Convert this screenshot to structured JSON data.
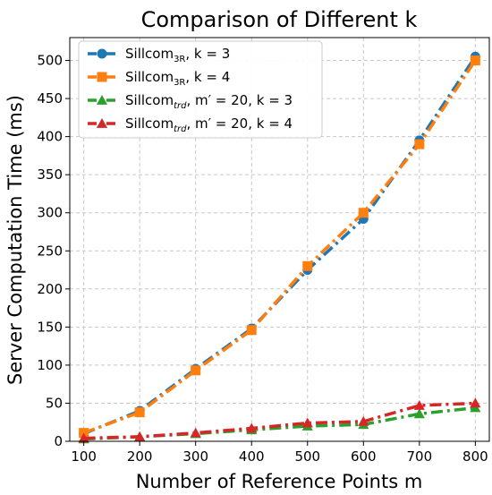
{
  "chart_data": {
    "type": "line",
    "title": "Comparison of Different k",
    "xlabel": "Number of Reference Points m",
    "ylabel": "Server Computation Time (ms)",
    "x": [
      100,
      200,
      300,
      400,
      500,
      600,
      700,
      800
    ],
    "xlim": [
      75,
      825
    ],
    "ylim": [
      0,
      530
    ],
    "xticks": [
      100,
      200,
      300,
      400,
      500,
      600,
      700,
      800
    ],
    "yticks": [
      0,
      50,
      100,
      150,
      200,
      250,
      300,
      350,
      400,
      450,
      500
    ],
    "grid": true,
    "legend_position": "top-left",
    "series": [
      {
        "name": "Sillcom",
        "sub": "3R",
        "rest": ", k = 3",
        "color": "#1f77b4",
        "marker": "circle",
        "values": [
          10,
          40,
          95,
          148,
          225,
          292,
          395,
          505
        ]
      },
      {
        "name": "Sillcom",
        "sub": "3R",
        "rest": ", k = 4",
        "color": "#ff7f0e",
        "marker": "square",
        "values": [
          11,
          38,
          93,
          146,
          230,
          300,
          390,
          500
        ]
      },
      {
        "name": "Sillcom",
        "sub": "trd",
        "rest": ", m′ = 20, k = 3",
        "color": "#2ca02c",
        "marker": "triangle",
        "values": [
          3,
          6,
          10,
          15,
          20,
          22,
          36,
          44
        ]
      },
      {
        "name": "Sillcom",
        "sub": "trd",
        "rest": ", m′ = 20, k = 4",
        "color": "#d62728",
        "marker": "triangle",
        "values": [
          4,
          6,
          11,
          17,
          24,
          26,
          47,
          50
        ]
      }
    ]
  }
}
